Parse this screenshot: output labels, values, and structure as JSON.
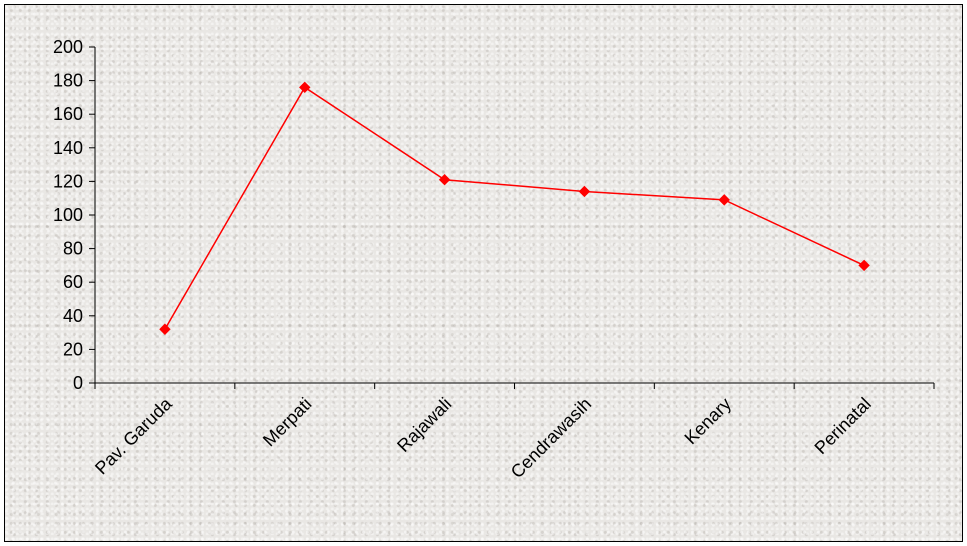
{
  "chart_data": {
    "type": "line",
    "title": "",
    "xlabel": "",
    "ylabel": "",
    "categories": [
      "Pav. Garuda",
      "Merpati",
      "Rajawali",
      "Cendrawasih",
      "Kenary",
      "Perinatal"
    ],
    "series": [
      {
        "values": [
          32,
          176,
          121,
          114,
          109,
          70
        ],
        "color": "#ff0000",
        "marker": "diamond"
      }
    ],
    "ylim": [
      0,
      200
    ],
    "yticks": [
      "0",
      "20",
      "40",
      "60",
      "80",
      "100",
      "120",
      "140",
      "160",
      "180",
      "200"
    ],
    "grid": false,
    "legend": "none"
  }
}
